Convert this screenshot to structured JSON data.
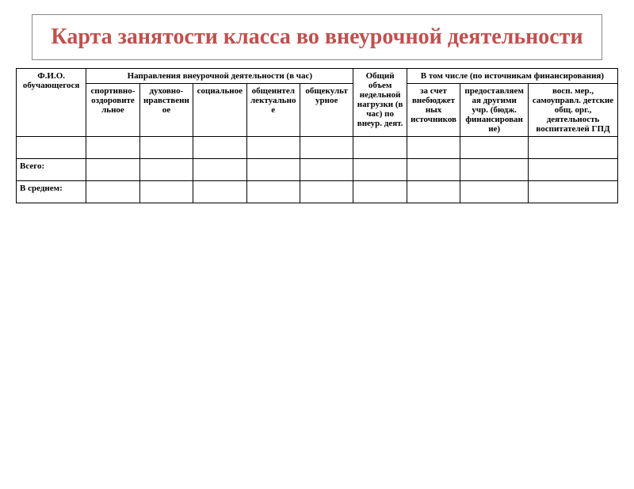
{
  "title": "Карта занятости класса во внеурочной деятельности",
  "colors": {
    "title": "#c0504d",
    "border": "#000000",
    "background": "#ffffff"
  },
  "headers": {
    "fio": "Ф.И.О. обучающегося",
    "directions": "Направления внеурочной деятельности (в час)",
    "total": "Общий объем недельной нагрузки (в час) по внеур. деят.",
    "funding": "В том числе (по источникам финансирования)",
    "dir_cols": {
      "sport": "спортивно-оздоровительное",
      "moral": "духовно-нравственное",
      "social": "социальное",
      "intellect": "общеинтеллектуальное",
      "culture": "общекультурное"
    },
    "fund_cols": {
      "extra_budget": "за счет внебюджетных источников",
      "other_inst": "предоставляемая другими учр. (бюдж. финансирование)",
      "self_gov": "восп. мер., самоуправл. детские общ. орг., деятельность воспитателей ГПД"
    }
  },
  "rows": {
    "total_label": "Всего:",
    "average_label": "В среднем:"
  }
}
